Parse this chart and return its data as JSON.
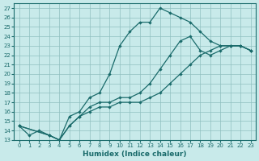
{
  "xlabel": "Humidex (Indice chaleur)",
  "xlim": [
    -0.5,
    23.5
  ],
  "ylim": [
    13,
    27.5
  ],
  "yticks": [
    13,
    14,
    15,
    16,
    17,
    18,
    19,
    20,
    21,
    22,
    23,
    24,
    25,
    26,
    27
  ],
  "xticks": [
    0,
    1,
    2,
    3,
    4,
    5,
    6,
    7,
    8,
    9,
    10,
    11,
    12,
    13,
    14,
    15,
    16,
    17,
    18,
    19,
    20,
    21,
    22,
    23
  ],
  "bg_color": "#c8eaea",
  "grid_color": "#8fbfbf",
  "line_color": "#1a6b6b",
  "line1_x": [
    0,
    1,
    2,
    3,
    4,
    5,
    6,
    7,
    8,
    9,
    10,
    11,
    12,
    13,
    14,
    15,
    16,
    17,
    18,
    19,
    20,
    21,
    22,
    23
  ],
  "line1_y": [
    14.5,
    13.5,
    14.0,
    13.5,
    13.0,
    15.5,
    16.0,
    17.5,
    18.0,
    20.0,
    23.0,
    24.5,
    25.5,
    25.5,
    27.0,
    26.5,
    26.0,
    25.5,
    24.5,
    23.5,
    23.0,
    23.0,
    23.0,
    22.5
  ],
  "line2_x": [
    0,
    3,
    4,
    5,
    6,
    7,
    8,
    9,
    10,
    11,
    12,
    13,
    14,
    15,
    16,
    17,
    18,
    19,
    20,
    21,
    22,
    23
  ],
  "line2_y": [
    14.5,
    13.5,
    13.0,
    14.5,
    15.5,
    16.5,
    17.0,
    17.0,
    17.5,
    17.5,
    18.0,
    19.0,
    20.5,
    22.0,
    23.5,
    24.0,
    22.5,
    22.0,
    22.5,
    23.0,
    23.0,
    22.5
  ],
  "line3_x": [
    0,
    3,
    4,
    5,
    6,
    7,
    8,
    9,
    10,
    11,
    12,
    13,
    14,
    15,
    16,
    17,
    18,
    19,
    20,
    21,
    22,
    23
  ],
  "line3_y": [
    14.5,
    13.5,
    13.0,
    14.5,
    15.5,
    16.0,
    16.5,
    16.5,
    17.0,
    17.0,
    17.0,
    17.5,
    18.0,
    19.0,
    20.0,
    21.0,
    22.0,
    22.5,
    23.0,
    23.0,
    23.0,
    22.5
  ]
}
